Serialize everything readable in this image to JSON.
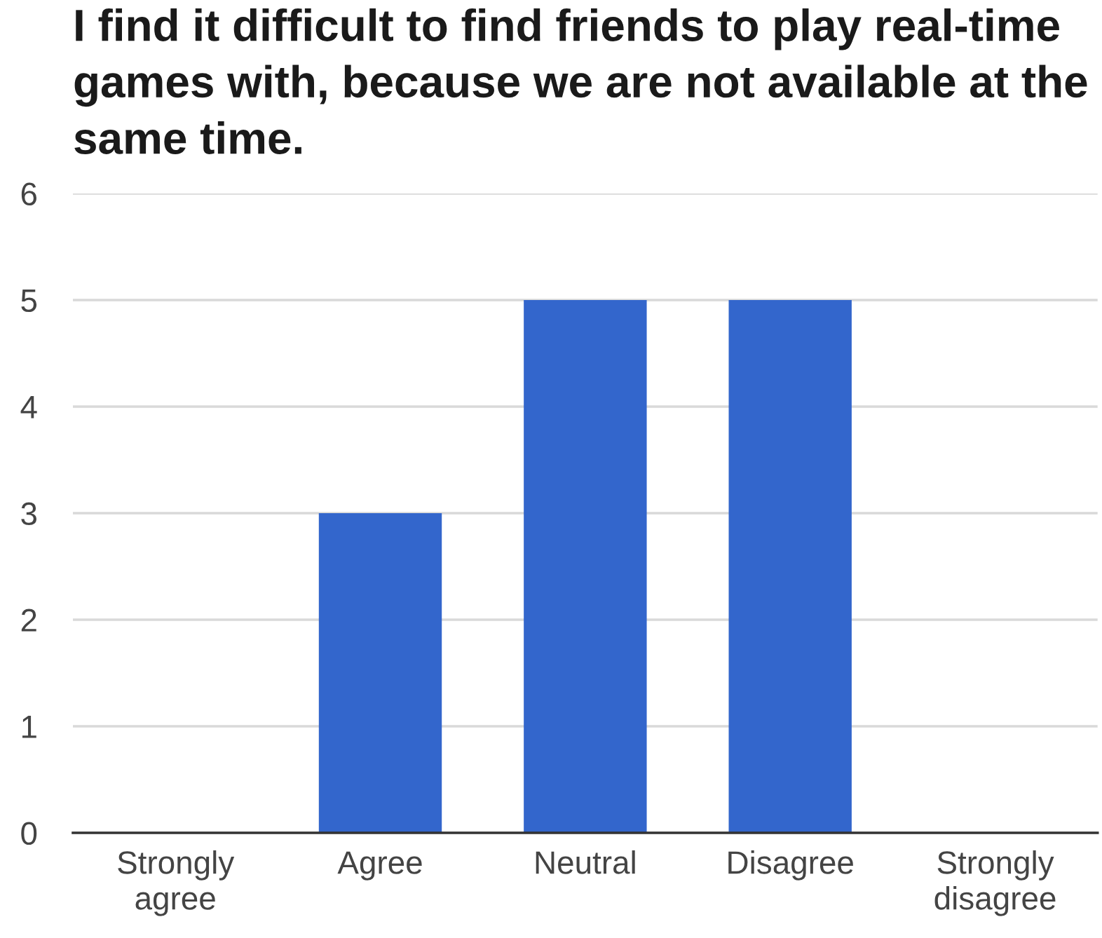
{
  "chart_data": {
    "type": "bar",
    "title": "I find it difficult to find friends to play real-time games with, because we are not available at the same time.",
    "categories": [
      "Strongly\nagree",
      "Agree",
      "Neutral",
      "Disagree",
      "Strongly\ndisagree"
    ],
    "values": [
      0,
      3,
      5,
      5,
      0
    ],
    "color": "#3366cc",
    "ylim": [
      0,
      6
    ],
    "yticks": [
      0,
      1,
      2,
      3,
      4,
      5,
      6
    ],
    "grid": "y",
    "legend": false
  }
}
